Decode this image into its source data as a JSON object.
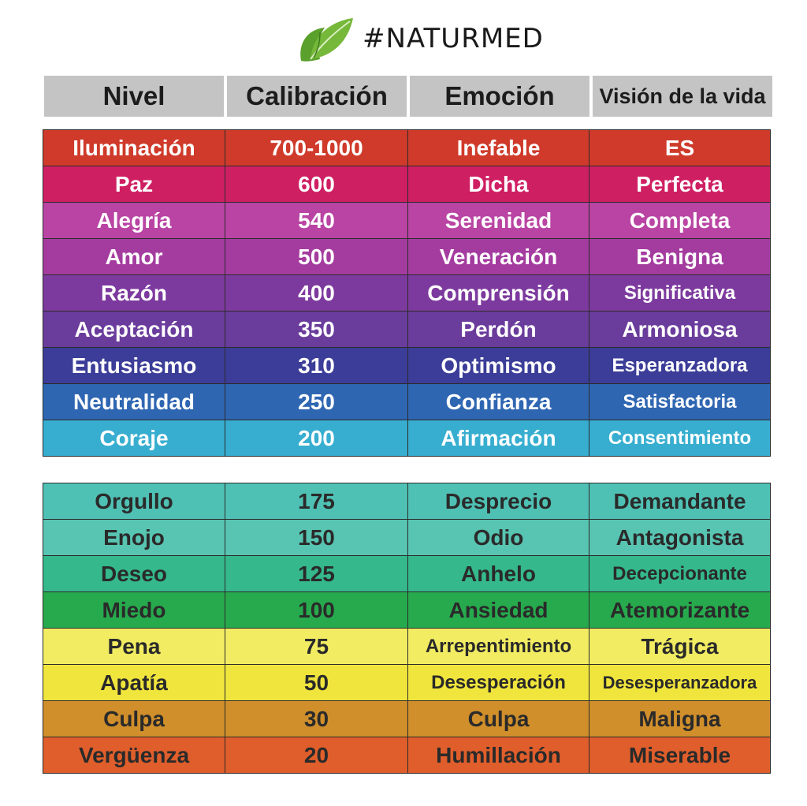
{
  "brand": {
    "logo_icon": "leaf-icon",
    "name": "#NATURMED"
  },
  "table": {
    "headers": [
      "Nivel",
      "Calibración",
      "Emoción",
      "Visión de la vida"
    ],
    "upper_rows": [
      {
        "nivel": "Iluminación",
        "calibracion": "700-1000",
        "emocion": "Inefable",
        "vision": "ES",
        "color": "#cf3a2a"
      },
      {
        "nivel": "Paz",
        "calibracion": "600",
        "emocion": "Dicha",
        "vision": "Perfecta",
        "color": "#cf1f63"
      },
      {
        "nivel": "Alegría",
        "calibracion": "540",
        "emocion": "Serenidad",
        "vision": "Completa",
        "color": "#b944a3"
      },
      {
        "nivel": "Amor",
        "calibracion": "500",
        "emocion": "Veneración",
        "vision": "Benigna",
        "color": "#a43c9f"
      },
      {
        "nivel": "Razón",
        "calibracion": "400",
        "emocion": "Comprensión",
        "vision": "Significativa",
        "color": "#7d3a9e"
      },
      {
        "nivel": "Aceptación",
        "calibracion": "350",
        "emocion": "Perdón",
        "vision": "Armoniosa",
        "color": "#6a3c9c"
      },
      {
        "nivel": "Entusiasmo",
        "calibracion": "310",
        "emocion": "Optimismo",
        "vision": "Esperanzadora",
        "color": "#3b3d98"
      },
      {
        "nivel": "Neutralidad",
        "calibracion": "250",
        "emocion": "Confianza",
        "vision": "Satisfactoria",
        "color": "#2f66b2"
      },
      {
        "nivel": "Coraje",
        "calibracion": "200",
        "emocion": "Afirmación",
        "vision": "Consentimiento",
        "color": "#37aed0"
      }
    ],
    "lower_rows": [
      {
        "nivel": "Orgullo",
        "calibracion": "175",
        "emocion": "Desprecio",
        "vision": "Demandante",
        "color": "#4fc1b4"
      },
      {
        "nivel": "Enojo",
        "calibracion": "150",
        "emocion": "Odio",
        "vision": "Antagonista",
        "color": "#58c4b2"
      },
      {
        "nivel": "Deseo",
        "calibracion": "125",
        "emocion": "Anhelo",
        "vision": "Decepcionante",
        "color": "#34b88c"
      },
      {
        "nivel": "Miedo",
        "calibracion": "100",
        "emocion": "Ansiedad",
        "vision": "Atemorizante",
        "color": "#27aa4d"
      },
      {
        "nivel": "Pena",
        "calibracion": "75",
        "emocion": "Arrepentimiento",
        "vision": "Trágica",
        "color": "#f1ec62"
      },
      {
        "nivel": "Apatía",
        "calibracion": "50",
        "emocion": "Desesperación",
        "vision": "Desesperanzadora",
        "color": "#f0e53c"
      },
      {
        "nivel": "Culpa",
        "calibracion": "30",
        "emocion": "Culpa",
        "vision": "Maligna",
        "color": "#d08f2b"
      },
      {
        "nivel": "Vergüenza",
        "calibracion": "20",
        "emocion": "Humillación",
        "vision": "Miserable",
        "color": "#e05e2b"
      }
    ]
  }
}
